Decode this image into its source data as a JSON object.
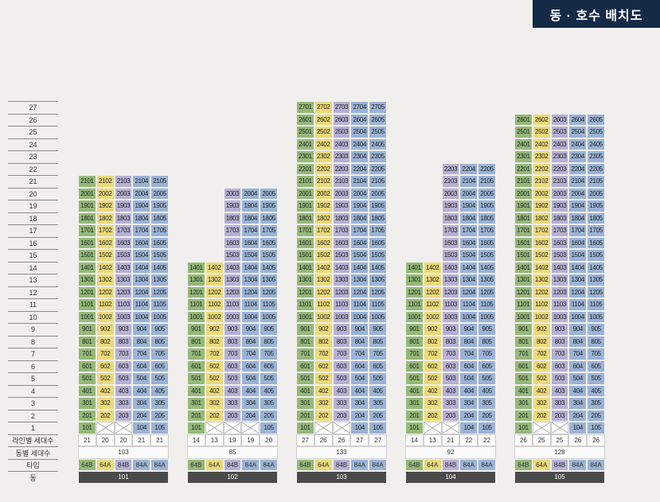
{
  "title": "동 · 호수 배치도",
  "row_labels": {
    "line_units": "라인별 세대수",
    "building_units": "동별 세대수",
    "type": "타입",
    "building": "동"
  },
  "floors": [
    27,
    26,
    25,
    24,
    23,
    22,
    21,
    20,
    19,
    18,
    17,
    16,
    15,
    14,
    13,
    12,
    11,
    10,
    9,
    8,
    7,
    6,
    5,
    4,
    3,
    2,
    1
  ],
  "line_colors": [
    "#94b978",
    "#ecd978",
    "#b6b0d4",
    "#9ab3d6",
    "#9ab3d6"
  ],
  "buildings": [
    {
      "name": "101",
      "total": "103",
      "types": [
        "64B",
        "64A",
        "84B",
        "84A",
        "84A"
      ],
      "line_counts": [
        "21",
        "20",
        "20",
        "21",
        "21"
      ],
      "lines": [
        {
          "min": 1,
          "max": 21
        },
        {
          "min": 2,
          "max": 21
        },
        {
          "min": 2,
          "max": 21
        },
        {
          "min": 1,
          "max": 21
        },
        {
          "min": 1,
          "max": 21
        }
      ]
    },
    {
      "name": "102",
      "total": "85",
      "types": [
        "64B",
        "64A",
        "84B",
        "84A",
        "84A"
      ],
      "line_counts": [
        "14",
        "13",
        "19",
        "19",
        "20"
      ],
      "lines": [
        {
          "min": 1,
          "max": 14
        },
        {
          "min": 2,
          "max": 14
        },
        {
          "min": 2,
          "max": 20
        },
        {
          "min": 2,
          "max": 20
        },
        {
          "min": 1,
          "max": 20
        }
      ]
    },
    {
      "name": "103",
      "total": "133",
      "types": [
        "64B",
        "64A",
        "84B",
        "84A",
        "84A"
      ],
      "line_counts": [
        "27",
        "26",
        "26",
        "27",
        "27"
      ],
      "lines": [
        {
          "min": 1,
          "max": 27
        },
        {
          "min": 2,
          "max": 27
        },
        {
          "min": 2,
          "max": 27
        },
        {
          "min": 1,
          "max": 27
        },
        {
          "min": 1,
          "max": 27
        }
      ]
    },
    {
      "name": "104",
      "total": "92",
      "types": [
        "64B",
        "64A",
        "84B",
        "84A",
        "84A"
      ],
      "line_counts": [
        "14",
        "13",
        "21",
        "22",
        "22"
      ],
      "lines": [
        {
          "min": 1,
          "max": 14
        },
        {
          "min": 2,
          "max": 14
        },
        {
          "min": 2,
          "max": 22
        },
        {
          "min": 1,
          "max": 22
        },
        {
          "min": 1,
          "max": 22
        }
      ]
    },
    {
      "name": "105",
      "total": "128",
      "types": [
        "64B",
        "64A",
        "84B",
        "84A",
        "84A"
      ],
      "line_counts": [
        "26",
        "25",
        "25",
        "26",
        "26"
      ],
      "lines": [
        {
          "min": 1,
          "max": 26
        },
        {
          "min": 2,
          "max": 26
        },
        {
          "min": 2,
          "max": 26
        },
        {
          "min": 1,
          "max": 26
        },
        {
          "min": 1,
          "max": 26
        }
      ]
    }
  ]
}
